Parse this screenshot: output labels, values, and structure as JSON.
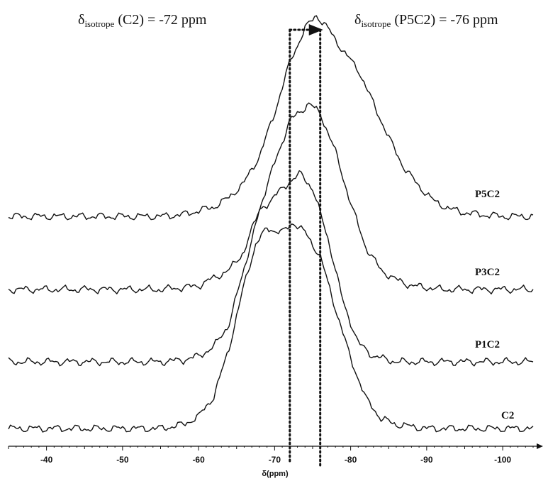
{
  "chart_data": {
    "type": "line",
    "xlabel": "δ(ppm)",
    "xlim": [
      -35,
      -104
    ],
    "x_ticks": [
      -40,
      -50,
      -60,
      -70,
      -80,
      -90,
      -100
    ],
    "annotations": {
      "left": {
        "symbol": "δ",
        "sub": "isotrope",
        "text": " (C2) = -72 ppm",
        "x": -72
      },
      "right": {
        "symbol": "δ",
        "sub": "isotrope",
        "text": " (P5C2) = -76 ppm",
        "x": -76
      }
    },
    "series": [
      {
        "name": "P5C2",
        "peak": -75.5,
        "points": [
          [
            -35,
            0
          ],
          [
            -40,
            0
          ],
          [
            -45,
            0
          ],
          [
            -50,
            0
          ],
          [
            -55,
            0
          ],
          [
            -58,
            0.01
          ],
          [
            -60,
            0.03
          ],
          [
            -62,
            0.05
          ],
          [
            -64,
            0.1
          ],
          [
            -66,
            0.18
          ],
          [
            -68,
            0.32
          ],
          [
            -70,
            0.55
          ],
          [
            -72,
            0.82
          ],
          [
            -74,
            1.0
          ],
          [
            -75.5,
            1.07
          ],
          [
            -77,
            1.0
          ],
          [
            -79,
            0.88
          ],
          [
            -81,
            0.78
          ],
          [
            -83,
            0.6
          ],
          [
            -85,
            0.42
          ],
          [
            -87,
            0.26
          ],
          [
            -89,
            0.16
          ],
          [
            -91,
            0.08
          ],
          [
            -93,
            0.04
          ],
          [
            -95,
            0.02
          ],
          [
            -97,
            0.01
          ],
          [
            -100,
            0
          ],
          [
            -104,
            0
          ]
        ]
      },
      {
        "name": "P3C2",
        "peak": -74.5,
        "points": [
          [
            -35,
            0
          ],
          [
            -40,
            0
          ],
          [
            -45,
            0
          ],
          [
            -50,
            0
          ],
          [
            -55,
            0
          ],
          [
            -58,
            0.01
          ],
          [
            -60,
            0.02
          ],
          [
            -62,
            0.06
          ],
          [
            -64,
            0.1
          ],
          [
            -66,
            0.2
          ],
          [
            -68,
            0.42
          ],
          [
            -70,
            0.66
          ],
          [
            -72,
            0.88
          ],
          [
            -74.5,
            0.97
          ],
          [
            -76,
            0.92
          ],
          [
            -78,
            0.72
          ],
          [
            -80,
            0.45
          ],
          [
            -82,
            0.22
          ],
          [
            -84,
            0.1
          ],
          [
            -86,
            0.05
          ],
          [
            -88,
            0.02
          ],
          [
            -92,
            0
          ],
          [
            -104,
            0
          ]
        ]
      },
      {
        "name": "P1C2",
        "peak": -73.5,
        "points": [
          [
            -35,
            0
          ],
          [
            -40,
            0
          ],
          [
            -45,
            0
          ],
          [
            -50,
            0
          ],
          [
            -55,
            0
          ],
          [
            -58,
            0.01
          ],
          [
            -60,
            0.03
          ],
          [
            -62,
            0.08
          ],
          [
            -64,
            0.2
          ],
          [
            -66,
            0.5
          ],
          [
            -68,
            0.8
          ],
          [
            -70,
            0.88
          ],
          [
            -72,
            0.96
          ],
          [
            -73.5,
            1.0
          ],
          [
            -75,
            0.92
          ],
          [
            -77,
            0.66
          ],
          [
            -79,
            0.32
          ],
          [
            -81,
            0.1
          ],
          [
            -83,
            0.03
          ],
          [
            -86,
            0
          ],
          [
            -104,
            0
          ]
        ]
      },
      {
        "name": "C2",
        "peak": -72.5,
        "points": [
          [
            -35,
            0
          ],
          [
            -40,
            0
          ],
          [
            -45,
            0
          ],
          [
            -50,
            0
          ],
          [
            -55,
            0
          ],
          [
            -58,
            0.02
          ],
          [
            -60,
            0.06
          ],
          [
            -62,
            0.16
          ],
          [
            -64,
            0.4
          ],
          [
            -66,
            0.72
          ],
          [
            -67.5,
            0.92
          ],
          [
            -69,
            1.0
          ],
          [
            -71,
            0.98
          ],
          [
            -72.5,
            1.03
          ],
          [
            -74,
            0.98
          ],
          [
            -76,
            0.86
          ],
          [
            -78,
            0.6
          ],
          [
            -80,
            0.35
          ],
          [
            -82,
            0.15
          ],
          [
            -84,
            0.05
          ],
          [
            -86,
            0.02
          ],
          [
            -90,
            0
          ],
          [
            -104,
            0
          ]
        ]
      }
    ]
  }
}
